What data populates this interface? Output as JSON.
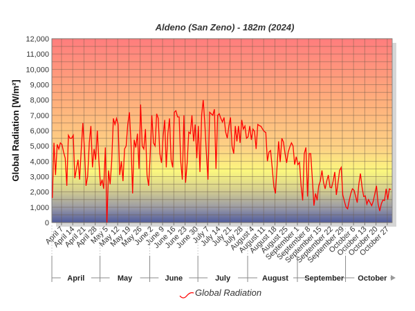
{
  "chart_data": {
    "type": "line",
    "title": "Aldeno (San Zeno) - 182m (2024)",
    "ylabel": "Global Radiation [W/m²]",
    "xlabel": "",
    "ylim": [
      0,
      12000
    ],
    "yticks": [
      "0",
      "1,000",
      "2,000",
      "3,000",
      "4,000",
      "5,000",
      "6,000",
      "7,000",
      "8,000",
      "9,000",
      "10,000",
      "11,000",
      "12,000"
    ],
    "x_start": "April 1",
    "x_tick_labels": [
      "April 7",
      "April 14",
      "April 21",
      "April 28",
      "May 5",
      "May 12",
      "May 19",
      "May 26",
      "June 2",
      "June 9",
      "June 16",
      "June 23",
      "June 30",
      "July 7",
      "July 14",
      "July 21",
      "July 28",
      "August 4",
      "August 11",
      "August 18",
      "August 25",
      "September 1",
      "September 8",
      "September 15",
      "September 22",
      "September 29",
      "October 6",
      "October 13",
      "October 20",
      "October 27"
    ],
    "months": [
      "April",
      "May",
      "June",
      "July",
      "August",
      "September",
      "October"
    ],
    "month_start_days": [
      0,
      30,
      61,
      91,
      122,
      153,
      183,
      214
    ],
    "grid": true,
    "legend": {
      "position": "bottom",
      "entries": [
        "Global Radiation"
      ]
    },
    "series": [
      {
        "name": "Global Radiation",
        "color": "#ff0000",
        "values": [
          1600,
          5200,
          3100,
          5100,
          4800,
          5200,
          5100,
          4600,
          4200,
          2400,
          5700,
          5500,
          5500,
          5700,
          2900,
          3500,
          4100,
          2800,
          4800,
          6500,
          4800,
          2400,
          3000,
          5200,
          6300,
          3600,
          4800,
          4100,
          6000,
          4000,
          2400,
          2800,
          2200,
          4900,
          0,
          3400,
          2500,
          4000,
          6800,
          6400,
          6800,
          6400,
          3100,
          4000,
          2700,
          4800,
          5000,
          6400,
          7200,
          5200,
          1900,
          5400,
          4900,
          5800,
          3500,
          7700,
          5000,
          4800,
          6100,
          3100,
          2400,
          4500,
          7000,
          5200,
          5000,
          7100,
          6800,
          4500,
          3900,
          5600,
          6700,
          3600,
          5800,
          6800,
          4100,
          3600,
          7200,
          7300,
          6900,
          6900,
          4000,
          2800,
          7000,
          2600,
          3900,
          5900,
          5800,
          7000,
          5300,
          6400,
          4200,
          6300,
          3300,
          7000,
          8000,
          6500,
          4500,
          2800,
          7200,
          7100,
          7000,
          7400,
          3500,
          7000,
          7100,
          6800,
          6560,
          6860,
          5900,
          5500,
          6300,
          6860,
          5000,
          4500,
          6300,
          5300,
          6300,
          5200,
          6700,
          6100,
          6300,
          5500,
          5600,
          6300,
          5400,
          6100,
          5950,
          4800,
          6400,
          6330,
          6280,
          6100,
          5950,
          5880,
          4000,
          4600,
          4700,
          3600,
          2350,
          1900,
          3600,
          5300,
          3950,
          5500,
          5250,
          4500,
          3900,
          4600,
          4950,
          5200,
          5000,
          3780,
          4300,
          3780,
          3930,
          2400,
          1440,
          4500,
          4900,
          1700,
          4500,
          4500,
          2900,
          1100,
          1900,
          1450,
          2400,
          2700,
          3400,
          2600,
          2200,
          2700,
          3100,
          2300,
          2270,
          2700,
          3300,
          1800,
          2600,
          3400,
          3600,
          1800,
          1400,
          1000,
          900,
          1440,
          1900,
          2200,
          2100,
          1700,
          1300,
          2500,
          3200,
          2300,
          1700,
          1740,
          1200,
          1500,
          1300,
          1100,
          1400,
          1900,
          2400,
          1200,
          750,
          1220,
          1470,
          1440,
          2200,
          1500,
          2200,
          2150
        ]
      }
    ]
  }
}
